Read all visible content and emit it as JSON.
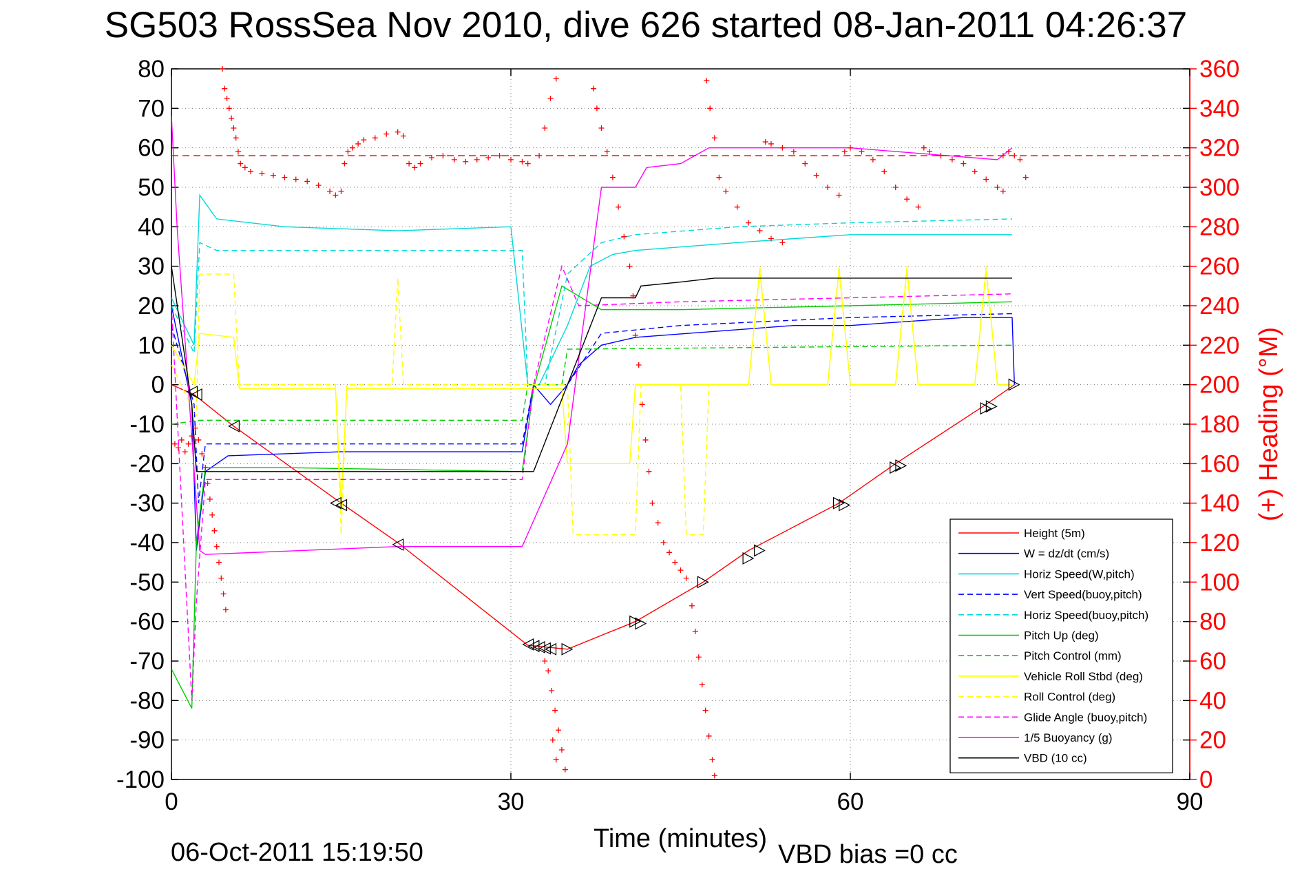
{
  "chart_data": {
    "type": "line",
    "title": "SG503 RossSea Nov 2010, dive 626 started 08-Jan-2011 04:26:37",
    "xlabel": "Time (minutes)",
    "ylabel": "",
    "y2label": "(+) Heading (°M)",
    "xlim": [
      0,
      90
    ],
    "ylim": [
      -100,
      80
    ],
    "y2lim": [
      0,
      360
    ],
    "xticks": [
      "0",
      "30",
      "60",
      "90"
    ],
    "yticks": [
      "80",
      "70",
      "60",
      "50",
      "40",
      "30",
      "20",
      "10",
      "0",
      "-10",
      "-20",
      "-30",
      "-40",
      "-50",
      "-60",
      "-70",
      "-80",
      "-90",
      "-100"
    ],
    "y2ticks": [
      "360",
      "340",
      "320",
      "300",
      "280",
      "260",
      "240",
      "220",
      "200",
      "180",
      "160",
      "140",
      "120",
      "100",
      "80",
      "60",
      "40",
      "20",
      "0"
    ],
    "grid": true,
    "legend_position": "bottom-right",
    "footer_left": "06-Oct-2011 15:19:50",
    "footer_right": "VBD bias =0 cc",
    "series": [
      {
        "name": "Height (5m)",
        "color": "#ff0000",
        "style": "solid",
        "x": [
          0,
          2,
          5.5,
          15,
          20,
          31.5,
          35,
          41,
          47,
          51,
          59,
          64,
          72,
          74.5
        ],
        "y": [
          0,
          -2.5,
          -10.5,
          -30,
          -40,
          -66,
          -67,
          -60,
          -50,
          -42,
          -30,
          -20,
          -5,
          0
        ]
      },
      {
        "name": "W = dz/dt (cm/s)",
        "color": "#0000ff",
        "style": "solid",
        "x": [
          0,
          1.8,
          2.2,
          3,
          5,
          15,
          31,
          32,
          33.5,
          35,
          36,
          38,
          41,
          55,
          60,
          65,
          70,
          74.3,
          74.5
        ],
        "y": [
          20,
          -5,
          -42,
          -22,
          -18,
          -17,
          -17,
          0,
          -5,
          0,
          5,
          10,
          12,
          15,
          15,
          16,
          17,
          17,
          0
        ]
      },
      {
        "name": "Horiz Speed(W,pitch)",
        "color": "#00d8d8",
        "style": "solid",
        "x": [
          0,
          2,
          2.5,
          4,
          10,
          20,
          30,
          31.5,
          32.5,
          35,
          37,
          39,
          41,
          50,
          60,
          70,
          74.3
        ],
        "y": [
          22,
          10,
          48,
          42,
          40,
          39,
          40,
          0,
          0,
          15,
          30,
          33,
          34,
          36,
          38,
          38,
          38
        ]
      },
      {
        "name": "Vert Speed(buoy,pitch)",
        "color": "#0000ff",
        "style": "dashed",
        "x": [
          0,
          2,
          2.4,
          3,
          10,
          31,
          32,
          35,
          38,
          45,
          60,
          74.3
        ],
        "y": [
          15,
          -5,
          -30,
          -15,
          -15,
          -15,
          0,
          0,
          13,
          15,
          17,
          18
        ]
      },
      {
        "name": "Horiz Speed(buoy,pitch)",
        "color": "#00d8d8",
        "style": "dashed",
        "x": [
          0,
          2,
          2.5,
          4,
          20,
          31,
          31.5,
          33,
          35,
          38,
          41,
          50,
          60,
          74.3
        ],
        "y": [
          20,
          8,
          36,
          34,
          34,
          34,
          0,
          0,
          28,
          36,
          38,
          40,
          41,
          42
        ]
      },
      {
        "name": "Pitch Up (deg)",
        "color": "#00cc00",
        "style": "solid",
        "x": [
          0,
          1.8,
          2.2,
          3,
          10,
          31,
          32,
          34.5,
          38,
          45,
          60,
          74.3
        ],
        "y": [
          -72,
          -82,
          -40,
          -21,
          -21,
          -22,
          -1,
          25,
          19,
          19,
          20,
          21
        ]
      },
      {
        "name": "Pitch Control (mm)",
        "color": "#00cc00",
        "style": "dashed",
        "x": [
          0,
          2.5,
          31,
          31.5,
          34.5,
          35,
          74.3
        ],
        "y": [
          -10,
          -9,
          -9,
          0,
          0,
          9,
          10
        ]
      },
      {
        "name": "Vehicle Roll Stbd (deg)",
        "color": "#ffff00",
        "style": "solid",
        "x": [
          0,
          2,
          2.5,
          5.5,
          6,
          14.5,
          15,
          15.5,
          20,
          31,
          34.5,
          35,
          40.5,
          41,
          46,
          51,
          52,
          53,
          58,
          59,
          60,
          64,
          65,
          66,
          71,
          72,
          73,
          74.3
        ],
        "y": [
          10,
          0,
          13,
          12,
          -1,
          -1,
          -30,
          -1,
          -1,
          -1,
          -1,
          -20,
          -20,
          0,
          0,
          0,
          29,
          0,
          0,
          29,
          0,
          0,
          29,
          0,
          0,
          29,
          0,
          0
        ]
      },
      {
        "name": "Roll Control (deg)",
        "color": "#ffff00",
        "style": "dashed",
        "x": [
          0,
          2.2,
          2.5,
          5.5,
          6,
          14.5,
          15,
          15.5,
          19.5,
          20,
          20.5,
          31,
          35,
          35.5,
          41,
          41.5,
          45,
          45.5,
          47,
          47.5,
          51,
          52,
          53,
          58,
          59,
          60,
          64,
          65,
          66,
          71,
          72,
          73,
          74.3
        ],
        "y": [
          5,
          -8,
          28,
          28,
          0,
          0,
          -38,
          0,
          0,
          27,
          0,
          0,
          0,
          -38,
          -38,
          0,
          0,
          -38,
          -38,
          0,
          0,
          30,
          0,
          0,
          30,
          0,
          0,
          30,
          0,
          0,
          30,
          0,
          0
        ]
      },
      {
        "name": "Glide Angle (buoy,pitch)",
        "color": "#ff00ff",
        "style": "dashed",
        "x": [
          0,
          1.8,
          2.2,
          3,
          31,
          32,
          34.5,
          36,
          45,
          60,
          74.3
        ],
        "y": [
          20,
          -80,
          -55,
          -24,
          -24,
          0,
          30,
          20,
          21,
          22,
          23
        ]
      },
      {
        "name": "1/5 Buoyancy (g)",
        "color": "#ff00ff",
        "style": "solid",
        "x": [
          0,
          0.5,
          2.5,
          3,
          20,
          31,
          35,
          38,
          41,
          42,
          45,
          47.5,
          52,
          60,
          73,
          74.3
        ],
        "y": [
          68,
          40,
          -42,
          -43,
          -41,
          -41,
          -15,
          50,
          50,
          55,
          56,
          60,
          60,
          60,
          57,
          60
        ]
      },
      {
        "name": "VBD (10 cc)",
        "color": "#000000",
        "style": "solid",
        "x": [
          0,
          1.8,
          2.2,
          31,
          32,
          38,
          41,
          41.5,
          45,
          48,
          52,
          74.3
        ],
        "y": [
          30,
          -5,
          -22,
          -22,
          -22,
          22,
          22,
          25,
          26,
          27,
          27,
          27
        ]
      }
    ],
    "heading_points": [
      [
        0.3,
        170
      ],
      [
        0.6,
        168
      ],
      [
        0.9,
        172
      ],
      [
        1.2,
        166
      ],
      [
        1.5,
        170
      ],
      [
        1.8,
        174
      ],
      [
        2.1,
        178
      ],
      [
        2.4,
        172
      ],
      [
        2.7,
        165
      ],
      [
        3,
        158
      ],
      [
        3.2,
        150
      ],
      [
        3.4,
        142
      ],
      [
        3.6,
        134
      ],
      [
        3.8,
        126
      ],
      [
        4,
        118
      ],
      [
        4.2,
        110
      ],
      [
        4.4,
        102
      ],
      [
        4.6,
        94
      ],
      [
        4.8,
        86
      ],
      [
        4.5,
        360
      ],
      [
        4.7,
        350
      ],
      [
        4.9,
        345
      ],
      [
        5.1,
        340
      ],
      [
        5.3,
        335
      ],
      [
        5.5,
        330
      ],
      [
        5.7,
        325
      ],
      [
        5.9,
        318
      ],
      [
        6.1,
        312
      ],
      [
        6.5,
        310
      ],
      [
        7,
        308
      ],
      [
        8,
        307
      ],
      [
        9,
        306
      ],
      [
        10,
        305
      ],
      [
        11,
        304
      ],
      [
        12,
        303
      ],
      [
        13,
        301
      ],
      [
        14,
        298
      ],
      [
        14.5,
        296
      ],
      [
        15,
        298
      ],
      [
        15.3,
        312
      ],
      [
        15.6,
        318
      ],
      [
        16,
        320
      ],
      [
        16.5,
        322
      ],
      [
        17,
        324
      ],
      [
        18,
        325
      ],
      [
        19,
        327
      ],
      [
        20,
        328
      ],
      [
        20.5,
        326
      ],
      [
        21,
        312
      ],
      [
        21.5,
        310
      ],
      [
        22,
        312
      ],
      [
        23,
        315
      ],
      [
        24,
        316
      ],
      [
        25,
        314
      ],
      [
        26,
        313
      ],
      [
        27,
        314
      ],
      [
        28,
        315
      ],
      [
        29,
        316
      ],
      [
        30,
        314
      ],
      [
        31,
        313
      ],
      [
        31.5,
        312
      ],
      [
        32.5,
        316
      ],
      [
        33,
        330
      ],
      [
        33.5,
        345
      ],
      [
        34,
        355
      ],
      [
        33,
        60
      ],
      [
        33.3,
        55
      ],
      [
        33.6,
        45
      ],
      [
        33.9,
        35
      ],
      [
        34.2,
        25
      ],
      [
        34.5,
        15
      ],
      [
        34.8,
        5
      ],
      [
        34,
        10
      ],
      [
        33.7,
        20
      ],
      [
        37,
        362
      ],
      [
        37.3,
        350
      ],
      [
        37.6,
        340
      ],
      [
        38,
        330
      ],
      [
        38.5,
        318
      ],
      [
        39,
        305
      ],
      [
        39.5,
        290
      ],
      [
        40,
        275
      ],
      [
        40.5,
        260
      ],
      [
        40.8,
        245
      ],
      [
        41,
        225
      ],
      [
        41.3,
        210
      ],
      [
        41.6,
        190
      ],
      [
        41.9,
        172
      ],
      [
        42.2,
        156
      ],
      [
        42.5,
        140
      ],
      [
        43,
        130
      ],
      [
        43.5,
        120
      ],
      [
        44,
        115
      ],
      [
        44.5,
        110
      ],
      [
        45,
        106
      ],
      [
        45.5,
        102
      ],
      [
        46,
        88
      ],
      [
        46.3,
        75
      ],
      [
        46.6,
        62
      ],
      [
        46.9,
        48
      ],
      [
        47.2,
        35
      ],
      [
        47.5,
        22
      ],
      [
        47.8,
        10
      ],
      [
        48,
        2
      ],
      [
        47.3,
        354
      ],
      [
        47.6,
        340
      ],
      [
        48,
        325
      ],
      [
        48.4,
        305
      ],
      [
        49,
        298
      ],
      [
        50,
        290
      ],
      [
        51,
        282
      ],
      [
        52,
        278
      ],
      [
        53,
        274
      ],
      [
        54,
        272
      ],
      [
        52.5,
        323
      ],
      [
        53,
        322
      ],
      [
        54,
        320
      ],
      [
        55,
        318
      ],
      [
        56,
        312
      ],
      [
        57,
        306
      ],
      [
        58,
        300
      ],
      [
        59,
        296
      ],
      [
        59.5,
        318
      ],
      [
        60,
        320
      ],
      [
        61,
        318
      ],
      [
        62,
        314
      ],
      [
        63,
        308
      ],
      [
        64,
        300
      ],
      [
        65,
        294
      ],
      [
        66,
        290
      ],
      [
        66.5,
        320
      ],
      [
        67,
        318
      ],
      [
        68,
        316
      ],
      [
        69,
        314
      ],
      [
        70,
        312
      ],
      [
        71,
        308
      ],
      [
        72,
        304
      ],
      [
        73,
        300
      ],
      [
        73.5,
        298
      ],
      [
        73.5,
        316
      ],
      [
        74,
        318
      ],
      [
        74.5,
        316
      ],
      [
        75,
        314
      ],
      [
        75.5,
        305
      ]
    ],
    "heading_mean": 316,
    "markers": [
      [
        1.8,
        -1.8
      ],
      [
        2.2,
        -2.5
      ],
      [
        5.5,
        -10.5
      ],
      [
        14.5,
        -30
      ],
      [
        15,
        -30.5
      ],
      [
        20,
        -40.5
      ],
      [
        31.5,
        -65.8
      ],
      [
        32,
        -66.2
      ],
      [
        32.5,
        -66.5
      ],
      [
        33,
        -66.8
      ],
      [
        33.5,
        -67
      ],
      [
        35,
        -67
      ],
      [
        41,
        -60
      ],
      [
        41.5,
        -60.5
      ],
      [
        47,
        -50
      ],
      [
        51,
        -44
      ],
      [
        52,
        -42
      ],
      [
        59,
        -30
      ],
      [
        59.5,
        -30.5
      ],
      [
        64,
        -21
      ],
      [
        64.5,
        -20.5
      ],
      [
        72,
        -6
      ],
      [
        72.5,
        -5.5
      ],
      [
        74.5,
        0
      ]
    ]
  }
}
